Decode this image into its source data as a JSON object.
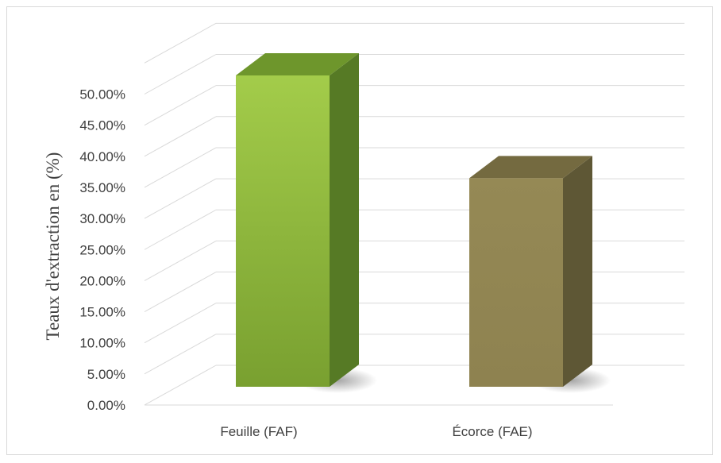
{
  "chart_data": {
    "type": "bar",
    "style": "3d-column",
    "categories": [
      "Feuille (FAF)",
      "Écorce (FAE)"
    ],
    "values": [
      0.5,
      0.335
    ],
    "ylabel": "Teaux d'extraction en (%)",
    "ylim": [
      0,
      0.5
    ],
    "ytick_step": 0.05,
    "ytick_labels": [
      "0.00%",
      "5.00%",
      "10.00%",
      "15.00%",
      "20.00%",
      "25.00%",
      "30.00%",
      "35.00%",
      "40.00%",
      "45.00%",
      "50.00%"
    ],
    "grid": true,
    "legend": "none",
    "colors": {
      "Feuille (FAF)": {
        "front_top": "#a3cc4a",
        "front_bottom": "#79a030",
        "side": "#567a25",
        "top": "#6e962c"
      },
      "Écorce (FAE)": {
        "front_top": "#958955",
        "front_bottom": "#8e8250",
        "side": "#5e5735",
        "top": "#746a40"
      },
      "grid": "#d9d9d9",
      "text": "#404040"
    }
  }
}
